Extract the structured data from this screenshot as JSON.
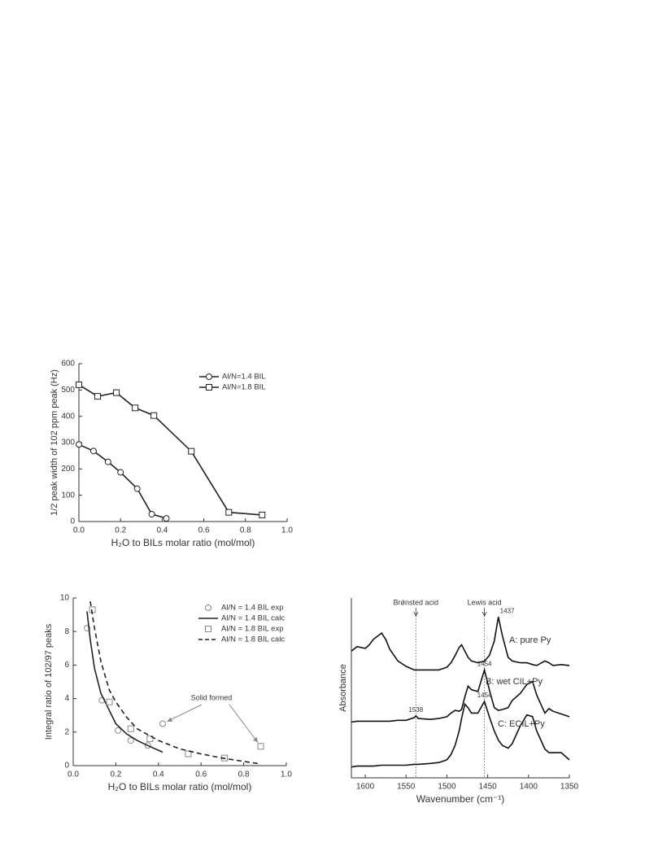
{
  "chart_data": [
    {
      "type": "line",
      "xlabel": "H₂O to BILs molar ratio (mol/mol)",
      "ylabel": "1/2 peak width of 102 ppm peak (Hz)",
      "xlim": [
        0,
        1
      ],
      "ylim": [
        0,
        600
      ],
      "xticks": [
        {
          "value": 0,
          "label": "0.0"
        },
        0.2,
        0.4,
        0.6,
        0.8,
        {
          "value": 1,
          "label": "1.0"
        }
      ],
      "yticks": [
        0,
        100,
        200,
        300,
        400,
        500,
        600
      ],
      "legend": "upper right",
      "series": [
        {
          "name": "Al/N=1.4 BIL",
          "color": "#222222",
          "line": "solid",
          "marker": "circle",
          "x": [
            0,
            0.07,
            0.14,
            0.2,
            0.28,
            0.35,
            0.42
          ],
          "values": [
            293,
            268,
            227,
            187,
            125,
            28,
            12
          ]
        },
        {
          "name": "Al/N=1.8 BIL",
          "color": "#222222",
          "line": "solid",
          "marker": "square",
          "x": [
            0,
            0.09,
            0.18,
            0.27,
            0.36,
            0.54,
            0.72,
            0.88
          ],
          "values": [
            520,
            476,
            490,
            432,
            403,
            267,
            35,
            25
          ]
        }
      ]
    },
    {
      "type": "line",
      "xlabel": "H₂O to BILs molar ratio (mol/mol)",
      "ylabel": "Integral ratio of 102/97 peaks",
      "xlim": [
        0,
        1
      ],
      "ylim": [
        0,
        10
      ],
      "xticks": [
        {
          "value": 0,
          "label": "0.0"
        },
        0.2,
        0.4,
        0.6,
        0.8,
        {
          "value": 1,
          "label": "1.0"
        }
      ],
      "yticks": [
        0,
        2,
        4,
        6,
        8,
        10
      ],
      "legend": "upper right",
      "annotation": "Solid formed",
      "series": [
        {
          "name": "Al/N = 1.4 BIL exp",
          "color": "#888888",
          "line": "none",
          "marker": "circle",
          "x": [
            0.065,
            0.135,
            0.21,
            0.27,
            0.35,
            0.42
          ],
          "values": [
            8.2,
            3.9,
            2.1,
            1.5,
            1.2,
            2.5
          ]
        },
        {
          "name": "Al/N = 1.4 BIL calc",
          "color": "#222222",
          "line": "solid",
          "marker": "none",
          "x": [
            0.065,
            0.08,
            0.1,
            0.13,
            0.15,
            0.2,
            0.25,
            0.3,
            0.35,
            0.42
          ],
          "values": [
            9.2,
            7.5,
            5.8,
            4.3,
            3.8,
            2.5,
            1.9,
            1.5,
            1.2,
            0.8
          ]
        },
        {
          "name": "Al/N = 1.8 BIL exp",
          "color": "#888888",
          "line": "none",
          "marker": "square",
          "x": [
            0.09,
            0.17,
            0.27,
            0.36,
            0.54,
            0.71,
            0.88
          ],
          "values": [
            9.3,
            3.8,
            2.2,
            1.6,
            0.7,
            0.45,
            1.15
          ]
        },
        {
          "name": "Al/N = 1.8 BIL calc",
          "color": "#222222",
          "line": "dashed",
          "marker": "none",
          "x": [
            0.08,
            0.1,
            0.13,
            0.17,
            0.2,
            0.25,
            0.3,
            0.4,
            0.5,
            0.6,
            0.7,
            0.8,
            0.88
          ],
          "values": [
            9.8,
            8.2,
            6.2,
            4.5,
            3.8,
            2.9,
            2.2,
            1.5,
            1.0,
            0.7,
            0.45,
            0.25,
            0.1
          ]
        }
      ]
    },
    {
      "type": "line",
      "xlabel": "Wavenumber (cm⁻¹)",
      "ylabel": "Absorbance",
      "xlim": [
        1617,
        1350
      ],
      "ylim": [
        0,
        10
      ],
      "xticks": [
        1600,
        1550,
        1500,
        1450,
        1400,
        1350
      ],
      "reference_lines": [
        {
          "label": "Brǿnsted acid",
          "value": 1538
        },
        {
          "label": "Lewis acid",
          "value": 1454
        }
      ],
      "x": [
        1617,
        1610,
        1600,
        1595,
        1590,
        1580,
        1575,
        1570,
        1560,
        1550,
        1540,
        1538,
        1535,
        1520,
        1510,
        1500,
        1495,
        1490,
        1485,
        1482,
        1478,
        1474,
        1470,
        1462,
        1454,
        1448,
        1442,
        1437,
        1432,
        1425,
        1420,
        1410,
        1402,
        1395,
        1390,
        1380,
        1375,
        1370,
        1360,
        1350
      ],
      "series": [
        {
          "name": "A: pure Py",
          "color": "#111111",
          "line": "solid",
          "marker": "none",
          "peaks": [
            1437
          ],
          "values": [
            7.05,
            7.3,
            7.2,
            7.4,
            7.7,
            8.05,
            7.7,
            7.15,
            6.5,
            6.2,
            6.0,
            6.0,
            6.0,
            6.0,
            6.0,
            6.15,
            6.4,
            6.8,
            7.25,
            7.4,
            7.05,
            6.7,
            6.5,
            6.4,
            6.5,
            6.8,
            7.6,
            8.95,
            7.9,
            6.7,
            6.5,
            6.4,
            6.4,
            6.3,
            6.25,
            6.5,
            6.4,
            6.25,
            6.3,
            6.25
          ]
        },
        {
          "name": "B: wet CIL+Py",
          "color": "#111111",
          "line": "solid",
          "marker": "none",
          "peaks": [
            1454,
            1538
          ],
          "values": [
            3.1,
            3.15,
            3.15,
            3.15,
            3.15,
            3.15,
            3.15,
            3.15,
            3.2,
            3.2,
            3.35,
            3.45,
            3.3,
            3.25,
            3.3,
            3.4,
            3.6,
            3.75,
            3.7,
            3.8,
            4.5,
            5.1,
            4.9,
            4.8,
            6.0,
            4.9,
            3.9,
            3.75,
            3.8,
            3.9,
            4.3,
            4.7,
            5.2,
            5.35,
            4.6,
            3.6,
            3.85,
            3.7,
            3.55,
            3.4
          ]
        },
        {
          "name": "C: ECIL+Py",
          "color": "#111111",
          "line": "solid",
          "marker": "none",
          "peaks": [
            1454
          ],
          "values": [
            0.6,
            0.65,
            0.65,
            0.65,
            0.65,
            0.7,
            0.7,
            0.7,
            0.7,
            0.7,
            0.75,
            0.75,
            0.75,
            0.8,
            0.85,
            1.0,
            1.3,
            1.8,
            2.6,
            3.3,
            4.1,
            3.9,
            3.6,
            3.6,
            4.25,
            3.4,
            2.6,
            2.1,
            1.8,
            1.65,
            1.9,
            2.9,
            3.5,
            3.4,
            2.6,
            1.6,
            1.4,
            1.4,
            1.4,
            1.0
          ]
        }
      ]
    }
  ]
}
